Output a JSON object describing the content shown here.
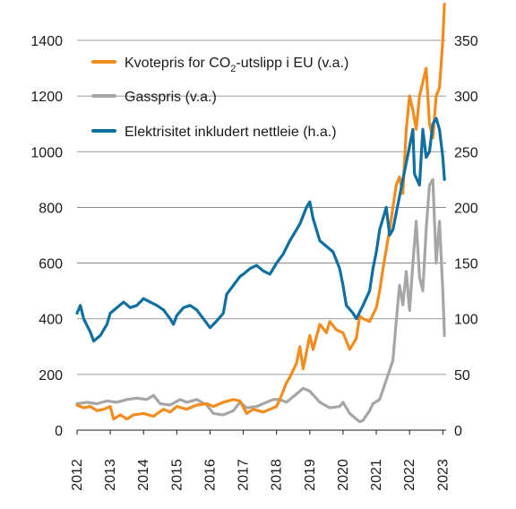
{
  "chart_data": {
    "type": "line",
    "title": "",
    "xlabel": "",
    "x_ticks": [
      "2012",
      "2013",
      "2014",
      "2015",
      "2016",
      "2017",
      "2018",
      "2019",
      "2020",
      "2021",
      "2022",
      "2023"
    ],
    "ylim_left": [
      0,
      1400
    ],
    "yticks_left": [
      "0",
      "200",
      "400",
      "600",
      "800",
      "1000",
      "1200",
      "1400"
    ],
    "ylim_right": [
      0,
      350
    ],
    "yticks_right": [
      "0",
      "50",
      "100",
      "150",
      "200",
      "250",
      "300",
      "350"
    ],
    "grid": "horizontal",
    "legend_position": "top-left",
    "legend": [
      {
        "label_pre": "Kvotepris for CO",
        "label_sub": "2",
        "label_post": "-utslipp i EU (v.a.)"
      },
      {
        "label_pre": "Gasspris (v.a.)",
        "label_sub": "",
        "label_post": ""
      },
      {
        "label_pre": "Elektrisitet inkludert nettleie (h.a.)",
        "label_sub": "",
        "label_post": ""
      }
    ],
    "series": [
      {
        "name": "Kvotepris for CO2-utslipp i EU (v.a.)",
        "axis": "left",
        "color": "#f28c1e",
        "points": [
          [
            2012.0,
            90
          ],
          [
            2012.2,
            80
          ],
          [
            2012.4,
            85
          ],
          [
            2012.6,
            70
          ],
          [
            2012.8,
            75
          ],
          [
            2013.0,
            85
          ],
          [
            2013.1,
            40
          ],
          [
            2013.3,
            55
          ],
          [
            2013.5,
            40
          ],
          [
            2013.7,
            55
          ],
          [
            2014.0,
            60
          ],
          [
            2014.3,
            50
          ],
          [
            2014.6,
            75
          ],
          [
            2014.8,
            65
          ],
          [
            2015.0,
            85
          ],
          [
            2015.3,
            75
          ],
          [
            2015.6,
            90
          ],
          [
            2015.9,
            95
          ],
          [
            2016.1,
            85
          ],
          [
            2016.4,
            100
          ],
          [
            2016.7,
            110
          ],
          [
            2016.9,
            105
          ],
          [
            2017.1,
            60
          ],
          [
            2017.3,
            75
          ],
          [
            2017.6,
            65
          ],
          [
            2017.8,
            75
          ],
          [
            2018.0,
            85
          ],
          [
            2018.1,
            110
          ],
          [
            2018.3,
            170
          ],
          [
            2018.4,
            190
          ],
          [
            2018.6,
            240
          ],
          [
            2018.7,
            300
          ],
          [
            2018.8,
            220
          ],
          [
            2019.0,
            340
          ],
          [
            2019.1,
            290
          ],
          [
            2019.3,
            380
          ],
          [
            2019.5,
            350
          ],
          [
            2019.6,
            390
          ],
          [
            2019.8,
            360
          ],
          [
            2020.0,
            350
          ],
          [
            2020.2,
            290
          ],
          [
            2020.4,
            330
          ],
          [
            2020.5,
            410
          ],
          [
            2020.6,
            400
          ],
          [
            2020.8,
            390
          ],
          [
            2021.0,
            440
          ],
          [
            2021.1,
            500
          ],
          [
            2021.2,
            580
          ],
          [
            2021.4,
            720
          ],
          [
            2021.6,
            880
          ],
          [
            2021.7,
            910
          ],
          [
            2021.8,
            850
          ],
          [
            2021.9,
            1080
          ],
          [
            2022.0,
            1200
          ],
          [
            2022.1,
            1150
          ],
          [
            2022.2,
            1080
          ],
          [
            2022.3,
            1200
          ],
          [
            2022.5,
            1300
          ],
          [
            2022.6,
            1100
          ],
          [
            2022.7,
            1050
          ],
          [
            2022.8,
            1200
          ],
          [
            2022.9,
            1230
          ],
          [
            2023.0,
            1400
          ],
          [
            2023.05,
            1530
          ]
        ]
      },
      {
        "name": "Gasspris (v.a.)",
        "axis": "left",
        "color": "#a6a6a6",
        "points": [
          [
            2012.0,
            95
          ],
          [
            2012.3,
            100
          ],
          [
            2012.6,
            95
          ],
          [
            2012.9,
            105
          ],
          [
            2013.2,
            100
          ],
          [
            2013.5,
            110
          ],
          [
            2013.8,
            115
          ],
          [
            2014.1,
            110
          ],
          [
            2014.3,
            125
          ],
          [
            2014.5,
            95
          ],
          [
            2014.8,
            90
          ],
          [
            2015.1,
            110
          ],
          [
            2015.3,
            100
          ],
          [
            2015.6,
            110
          ],
          [
            2015.9,
            90
          ],
          [
            2016.1,
            60
          ],
          [
            2016.4,
            55
          ],
          [
            2016.7,
            70
          ],
          [
            2016.9,
            100
          ],
          [
            2017.1,
            80
          ],
          [
            2017.4,
            85
          ],
          [
            2017.7,
            100
          ],
          [
            2017.9,
            110
          ],
          [
            2018.1,
            110
          ],
          [
            2018.3,
            100
          ],
          [
            2018.6,
            130
          ],
          [
            2018.8,
            150
          ],
          [
            2019.0,
            140
          ],
          [
            2019.3,
            100
          ],
          [
            2019.6,
            80
          ],
          [
            2019.9,
            85
          ],
          [
            2020.0,
            100
          ],
          [
            2020.2,
            60
          ],
          [
            2020.4,
            40
          ],
          [
            2020.5,
            30
          ],
          [
            2020.6,
            35
          ],
          [
            2020.8,
            70
          ],
          [
            2020.9,
            95
          ],
          [
            2021.1,
            110
          ],
          [
            2021.3,
            180
          ],
          [
            2021.5,
            250
          ],
          [
            2021.6,
            390
          ],
          [
            2021.7,
            520
          ],
          [
            2021.8,
            450
          ],
          [
            2021.9,
            570
          ],
          [
            2022.0,
            430
          ],
          [
            2022.1,
            600
          ],
          [
            2022.2,
            750
          ],
          [
            2022.3,
            550
          ],
          [
            2022.4,
            500
          ],
          [
            2022.5,
            720
          ],
          [
            2022.6,
            880
          ],
          [
            2022.7,
            900
          ],
          [
            2022.8,
            600
          ],
          [
            2022.9,
            750
          ],
          [
            2023.0,
            500
          ],
          [
            2023.05,
            340
          ]
        ]
      },
      {
        "name": "Elektrisitet inkludert nettleie (h.a.)",
        "axis": "right",
        "color": "#0e6fa0",
        "points": [
          [
            2012.0,
            105
          ],
          [
            2012.1,
            112
          ],
          [
            2012.2,
            100
          ],
          [
            2012.4,
            88
          ],
          [
            2012.5,
            80
          ],
          [
            2012.7,
            85
          ],
          [
            2012.9,
            95
          ],
          [
            2013.0,
            105
          ],
          [
            2013.2,
            110
          ],
          [
            2013.4,
            115
          ],
          [
            2013.6,
            110
          ],
          [
            2013.8,
            112
          ],
          [
            2014.0,
            118
          ],
          [
            2014.2,
            115
          ],
          [
            2014.4,
            112
          ],
          [
            2014.6,
            108
          ],
          [
            2014.8,
            100
          ],
          [
            2014.9,
            95
          ],
          [
            2015.0,
            103
          ],
          [
            2015.2,
            110
          ],
          [
            2015.4,
            112
          ],
          [
            2015.6,
            108
          ],
          [
            2015.8,
            100
          ],
          [
            2016.0,
            92
          ],
          [
            2016.2,
            98
          ],
          [
            2016.4,
            105
          ],
          [
            2016.5,
            122
          ],
          [
            2016.7,
            130
          ],
          [
            2016.9,
            138
          ],
          [
            2017.0,
            140
          ],
          [
            2017.2,
            145
          ],
          [
            2017.4,
            148
          ],
          [
            2017.6,
            143
          ],
          [
            2017.8,
            140
          ],
          [
            2018.0,
            150
          ],
          [
            2018.2,
            158
          ],
          [
            2018.4,
            170
          ],
          [
            2018.6,
            180
          ],
          [
            2018.7,
            185
          ],
          [
            2018.9,
            200
          ],
          [
            2019.0,
            205
          ],
          [
            2019.1,
            190
          ],
          [
            2019.3,
            170
          ],
          [
            2019.5,
            165
          ],
          [
            2019.7,
            160
          ],
          [
            2019.9,
            145
          ],
          [
            2020.0,
            130
          ],
          [
            2020.1,
            112
          ],
          [
            2020.3,
            105
          ],
          [
            2020.4,
            100
          ],
          [
            2020.6,
            112
          ],
          [
            2020.8,
            125
          ],
          [
            2020.9,
            145
          ],
          [
            2021.0,
            160
          ],
          [
            2021.1,
            180
          ],
          [
            2021.3,
            200
          ],
          [
            2021.4,
            175
          ],
          [
            2021.5,
            180
          ],
          [
            2021.6,
            195
          ],
          [
            2021.7,
            210
          ],
          [
            2021.8,
            225
          ],
          [
            2021.9,
            240
          ],
          [
            2022.0,
            255
          ],
          [
            2022.1,
            270
          ],
          [
            2022.15,
            230
          ],
          [
            2022.3,
            220
          ],
          [
            2022.4,
            270
          ],
          [
            2022.5,
            245
          ],
          [
            2022.6,
            250
          ],
          [
            2022.7,
            275
          ],
          [
            2022.8,
            280
          ],
          [
            2022.9,
            270
          ],
          [
            2023.0,
            245
          ],
          [
            2023.05,
            225
          ]
        ]
      }
    ]
  }
}
